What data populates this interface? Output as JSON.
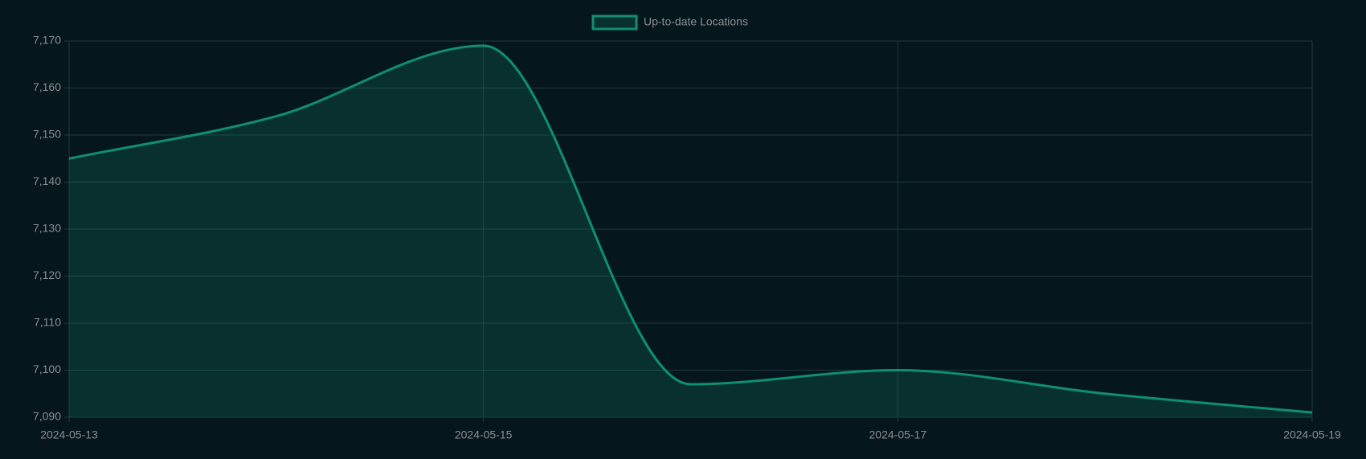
{
  "chart_data": {
    "type": "line",
    "x": [
      "2024-05-13",
      "2024-05-14",
      "2024-05-15",
      "2024-05-16",
      "2024-05-17",
      "2024-05-18",
      "2024-05-19"
    ],
    "series": [
      {
        "name": "Up-to-date Locations",
        "color": "#0f8f72",
        "values": [
          7145,
          7154,
          7169,
          7097,
          7100,
          7095,
          7091
        ]
      }
    ],
    "xlim": [
      "2024-05-13",
      "2024-05-19"
    ],
    "xticks": [
      "2024-05-13",
      "2024-05-15",
      "2024-05-17",
      "2024-05-19"
    ],
    "ylim": [
      7090,
      7170
    ],
    "yticks": [
      {
        "value": 7090,
        "label": "7,090"
      },
      {
        "value": 7100,
        "label": "7,100"
      },
      {
        "value": 7110,
        "label": "7,110"
      },
      {
        "value": 7120,
        "label": "7,120"
      },
      {
        "value": 7130,
        "label": "7,130"
      },
      {
        "value": 7140,
        "label": "7,140"
      },
      {
        "value": 7150,
        "label": "7,150"
      },
      {
        "value": 7160,
        "label": "7,160"
      },
      {
        "value": 7170,
        "label": "7,170"
      }
    ],
    "grid": true,
    "fill": true,
    "legend": "top"
  }
}
